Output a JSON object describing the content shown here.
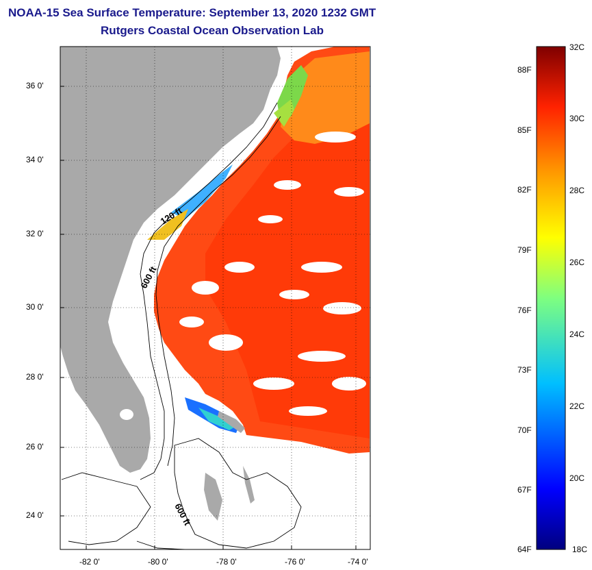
{
  "title": "NOAA-15 Sea Surface Temperature:  September 13, 2020 1232 GMT",
  "subtitle": "Rutgers Coastal Ocean Observation Lab",
  "map": {
    "lat_range": [
      23,
      37.1
    ],
    "lon_range": [
      -83,
      -73
    ],
    "lat_ticks": [
      "36 0'",
      "34 0'",
      "32 0'",
      "30 0'",
      "28 0'",
      "26 0'",
      "24 0'"
    ],
    "lon_ticks": [
      "-82 0'",
      "-80 0'",
      "-78 0'",
      "-76 0'",
      "-74 0'"
    ],
    "grid": "dotted",
    "contour_labels": [
      "120 ft",
      "600 ft",
      "600 ft"
    ],
    "land_color": "#a9a9a9"
  },
  "colorbar": {
    "celsius": [
      "32C",
      "30C",
      "28C",
      "26C",
      "24C",
      "22C",
      "20C",
      "18C"
    ],
    "fahrenheit": [
      "88F",
      "85F",
      "82F",
      "79F",
      "76F",
      "73F",
      "70F",
      "67F",
      "64F"
    ],
    "range_c": [
      18,
      32
    ]
  }
}
